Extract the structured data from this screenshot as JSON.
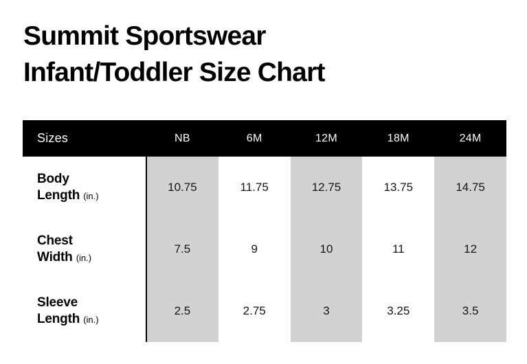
{
  "title": {
    "line1": "Summit Sportswear",
    "line2": "Infant/Toddler Size Chart"
  },
  "table": {
    "header": {
      "label": "Sizes",
      "columns": [
        "NB",
        "6M",
        "12M",
        "18M",
        "24M"
      ]
    },
    "rows": [
      {
        "name_line1": "Body",
        "name_line2": "Length",
        "unit": "(in.)",
        "values": [
          "10.75",
          "11.75",
          "12.75",
          "13.75",
          "14.75"
        ]
      },
      {
        "name_line1": "Chest",
        "name_line2": "Width",
        "unit": "(in.)",
        "values": [
          "7.5",
          "9",
          "10",
          "11",
          "12"
        ]
      },
      {
        "name_line1": "Sleeve",
        "name_line2": "Length",
        "unit": "(in.)",
        "values": [
          "2.5",
          "2.75",
          "3",
          "3.25",
          "3.5"
        ]
      }
    ]
  },
  "colors": {
    "header_bg": "#000000",
    "header_text": "#ffffff",
    "stripe": "#d2d2d2",
    "text": "#141414",
    "divider": "#000000",
    "page_bg": "#ffffff"
  },
  "chart_data": {
    "type": "table",
    "title": "Summit Sportswear Infant/Toddler Size Chart",
    "columns": [
      "Sizes",
      "NB",
      "6M",
      "12M",
      "18M",
      "24M"
    ],
    "rows": [
      [
        "Body Length (in.)",
        10.75,
        11.75,
        12.75,
        13.75,
        14.75
      ],
      [
        "Chest Width (in.)",
        7.5,
        9,
        10,
        11,
        12
      ],
      [
        "Sleeve Length (in.)",
        2.5,
        2.75,
        3,
        3.25,
        3.5
      ]
    ],
    "layout": {
      "striped_column_indexes": [
        1,
        3,
        5
      ],
      "header_style": "black-bar-white-text",
      "units": "inches"
    }
  }
}
